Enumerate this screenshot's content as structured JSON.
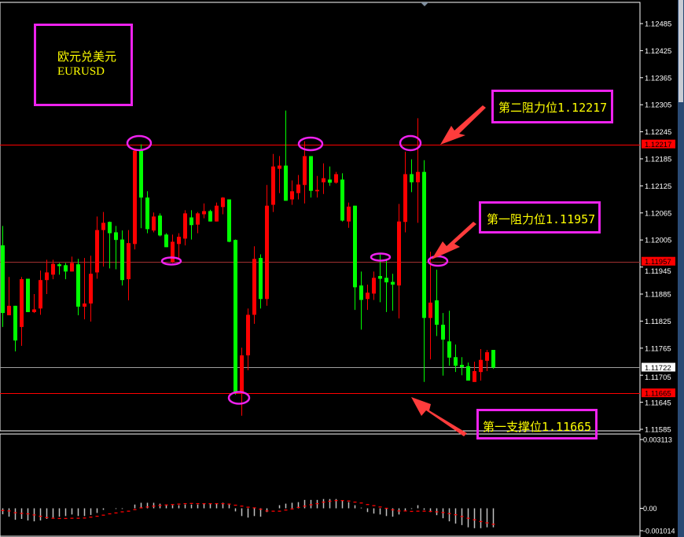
{
  "symbol_box": {
    "name_cn": "欧元兑美元",
    "symbol": "EURUSD"
  },
  "annotations": {
    "resistance2": "第二阻力位1.12217",
    "resistance1": "第一阻力位1.11957",
    "support1": "第一支撑位1.11665"
  },
  "colors": {
    "background": "#000000",
    "up_candle": "#ff0000",
    "down_candle": "#00ff00",
    "level_line": "#ff0000",
    "bid_line": "#a0a0a0",
    "annotation_border": "#ee22ee",
    "annotation_text": "#ffff00",
    "histogram": "#c0c0c0",
    "signal": "#ff0000"
  },
  "chart_data": [
    {
      "type": "candlestick",
      "title": "",
      "ylim": [
        1.11585,
        1.12485
      ],
      "y_ticks": [
        "1.12485",
        "1.12425",
        "1.12365",
        "1.12305",
        "1.12245",
        "1.12185",
        "1.12125",
        "1.12065",
        "1.12005",
        "1.11945",
        "1.11885",
        "1.11825",
        "1.11765",
        "1.11705",
        "1.11645",
        "1.11585"
      ],
      "levels": [
        {
          "value": 1.12217,
          "label": "1.12217",
          "kind": "resistance"
        },
        {
          "value": 1.11957,
          "label": "1.11957",
          "kind": "resistance"
        },
        {
          "value": 1.11665,
          "label": "1.11665",
          "kind": "support"
        }
      ],
      "bid": {
        "value": 1.11722,
        "label": "1.11722"
      },
      "candles_ohlc": [
        [
          1.11993,
          1.12036,
          1.11812,
          1.11843
        ],
        [
          1.11838,
          1.11923,
          1.11838,
          1.11859
        ],
        [
          1.11859,
          1.11859,
          1.11758,
          1.11782
        ],
        [
          1.11812,
          1.11923,
          1.1177,
          1.11918
        ],
        [
          1.11919,
          1.11919,
          1.11845,
          1.11845
        ],
        [
          1.11845,
          1.11885,
          1.11843,
          1.11851
        ],
        [
          1.11853,
          1.11937,
          1.11839,
          1.11916
        ],
        [
          1.11916,
          1.11961,
          1.11885,
          1.11933
        ],
        [
          1.11928,
          1.11961,
          1.11918,
          1.11952
        ],
        [
          1.11951,
          1.11954,
          1.11928,
          1.11947
        ],
        [
          1.11949,
          1.11954,
          1.11918,
          1.11935
        ],
        [
          1.11935,
          1.11968,
          1.11935,
          1.11954
        ],
        [
          1.11951,
          1.11963,
          1.11838,
          1.11857
        ],
        [
          1.11857,
          1.11965,
          1.11829,
          1.11864
        ],
        [
          1.11864,
          1.1197,
          1.11824,
          1.1193
        ],
        [
          1.11933,
          1.12057,
          1.11919,
          1.12027
        ],
        [
          1.12027,
          1.12067,
          1.11946,
          1.12043
        ],
        [
          1.12045,
          1.12046,
          1.11942,
          1.1202
        ],
        [
          1.12022,
          1.12036,
          1.1194,
          1.12005
        ],
        [
          1.12006,
          1.12026,
          1.11904,
          1.11916
        ],
        [
          1.11918,
          1.12027,
          1.11871,
          1.11998
        ],
        [
          1.11996,
          1.12207,
          1.11984,
          1.12203
        ],
        [
          1.12203,
          1.12217,
          1.12031,
          1.12099
        ],
        [
          1.12099,
          1.12113,
          1.1202,
          1.12029
        ],
        [
          1.12026,
          1.12066,
          1.12022,
          1.12057
        ],
        [
          1.12059,
          1.12064,
          1.12013,
          1.12015
        ],
        [
          1.12017,
          1.1202,
          1.11989,
          1.11989
        ],
        [
          1.11956,
          1.12017,
          1.11954,
          1.12001
        ],
        [
          1.11996,
          1.1202,
          1.11963,
          1.12012
        ],
        [
          1.12008,
          1.12071,
          1.11993,
          1.12064
        ],
        [
          1.12055,
          1.12071,
          1.12006,
          1.12038
        ],
        [
          1.12039,
          1.12067,
          1.1202,
          1.12064
        ],
        [
          1.12062,
          1.12086,
          1.12053,
          1.12069
        ],
        [
          1.12069,
          1.12072,
          1.12046,
          1.12046
        ],
        [
          1.12046,
          1.12088,
          1.12046,
          1.12081
        ],
        [
          1.12078,
          1.121,
          1.12062,
          1.12099
        ],
        [
          1.12095,
          1.12095,
          1.12,
          1.12001
        ],
        [
          1.12005,
          1.12006,
          1.11662,
          1.11667
        ],
        [
          1.11667,
          1.11766,
          1.11615,
          1.11749
        ],
        [
          1.11749,
          1.11853,
          1.11716,
          1.11839
        ],
        [
          1.11839,
          1.11991,
          1.11819,
          1.11963
        ],
        [
          1.11965,
          1.11973,
          1.11853,
          1.11874
        ],
        [
          1.11874,
          1.12127,
          1.11859,
          1.12081
        ],
        [
          1.12083,
          1.12196,
          1.12067,
          1.12168
        ],
        [
          1.12163,
          1.12191,
          1.12109,
          1.1217
        ],
        [
          1.1217,
          1.12292,
          1.12092,
          1.12092
        ],
        [
          1.12095,
          1.12137,
          1.12083,
          1.12113
        ],
        [
          1.12109,
          1.12149,
          1.12095,
          1.12128
        ],
        [
          1.12127,
          1.12224,
          1.12086,
          1.12191
        ],
        [
          1.12191,
          1.12191,
          1.12099,
          1.12114
        ],
        [
          1.12113,
          1.12147,
          1.12099,
          1.12116
        ],
        [
          1.12133,
          1.12175,
          1.12107,
          1.12142
        ],
        [
          1.12139,
          1.12168,
          1.12125,
          1.12132
        ],
        [
          1.12132,
          1.12156,
          1.1213,
          1.12151
        ],
        [
          1.12139,
          1.12153,
          1.12046,
          1.12048
        ],
        [
          1.12046,
          1.12088,
          1.12032,
          1.12079
        ],
        [
          1.12081,
          1.12081,
          1.1185,
          1.119
        ],
        [
          1.11904,
          1.11935,
          1.11806,
          1.11872
        ],
        [
          1.11874,
          1.11906,
          1.1185,
          1.11888
        ],
        [
          1.11886,
          1.11935,
          1.11872,
          1.11921
        ],
        [
          1.11925,
          1.11973,
          1.11867,
          1.11919
        ],
        [
          1.11921,
          1.11963,
          1.11845,
          1.11911
        ],
        [
          1.11912,
          1.1193,
          1.11848,
          1.11906
        ],
        [
          1.11904,
          1.12085,
          1.11831,
          1.12046
        ],
        [
          1.12045,
          1.12201,
          1.12022,
          1.12151
        ],
        [
          1.12151,
          1.12184,
          1.12111,
          1.12133
        ],
        [
          1.12133,
          1.12275,
          1.12043,
          1.12156
        ],
        [
          1.12156,
          1.12182,
          1.1169,
          1.11832
        ],
        [
          1.11832,
          1.11979,
          1.1174,
          1.11866
        ],
        [
          1.11871,
          1.11939,
          1.11792,
          1.11817
        ],
        [
          1.11817,
          1.11843,
          1.11704,
          1.11784
        ],
        [
          1.1178,
          1.11848,
          1.11726,
          1.11744
        ],
        [
          1.11745,
          1.11773,
          1.11712,
          1.11726
        ],
        [
          1.11728,
          1.11745,
          1.11705,
          1.11723
        ],
        [
          1.11725,
          1.11733,
          1.11693,
          1.11693
        ],
        [
          1.1169,
          1.11735,
          1.1169,
          1.11714
        ],
        [
          1.11712,
          1.11763,
          1.11693,
          1.11739
        ],
        [
          1.11737,
          1.11761,
          1.11714,
          1.11756
        ],
        [
          1.11761,
          1.11761,
          1.11719,
          1.11722
        ]
      ]
    },
    {
      "type": "bar",
      "title": "",
      "ylim": [
        -0.001014,
        0.003113
      ],
      "y_ticks": [
        "0.003113",
        "0.00",
        "-0.001014"
      ],
      "histogram": [
        -0.00027,
        -0.00038,
        -0.00052,
        -0.00048,
        -0.00055,
        -0.00059,
        -0.00055,
        -0.00048,
        -0.00042,
        -0.00038,
        -0.00035,
        -0.00028,
        -0.00035,
        -0.00035,
        -0.0003,
        -0.00021,
        -7e-05,
        0.0,
        -3e-05,
        -3e-05,
        0.0,
        0.00017,
        0.00025,
        0.00025,
        0.00025,
        0.00021,
        0.00017,
        0.00014,
        0.00014,
        0.00017,
        0.00017,
        0.00017,
        0.00021,
        0.00021,
        0.00021,
        0.00025,
        0.00017,
        -0.00014,
        -0.00035,
        -0.00042,
        -0.00035,
        -0.00038,
        -0.00017,
        0.0,
        0.00014,
        0.00021,
        0.00025,
        0.00028,
        0.00038,
        0.00038,
        0.00038,
        0.00042,
        0.00042,
        0.00042,
        0.00035,
        0.00028,
        0.00014,
        3e-05,
        -0.00017,
        -0.00024,
        -0.00028,
        -0.00035,
        -0.00038,
        -0.00028,
        -0.0001,
        -3e-05,
        0.00014,
        -7e-05,
        -0.00017,
        -0.00031,
        -0.00045,
        -0.00059,
        -0.00069,
        -0.00076,
        -0.00086,
        -0.0009,
        -0.0009,
        -0.00086,
        -0.00086
      ],
      "signal": [
        -0.0001,
        -0.00012,
        -0.0002,
        -0.00023,
        -0.00025,
        -0.0003,
        -0.00036,
        -0.00042,
        -0.00045,
        -0.00046,
        -0.00046,
        -0.00045,
        -0.00045,
        -0.00044,
        -0.0004,
        -0.00036,
        -0.00031,
        -0.00025,
        -0.00021,
        -0.00016,
        -0.00013,
        -6e-05,
        2e-05,
        6e-05,
        0.0001,
        0.00013,
        0.00015,
        0.00017,
        0.00019,
        0.00021,
        0.00022,
        0.00021,
        0.00021,
        0.00021,
        0.00021,
        0.00021,
        0.00019,
        0.00014,
        0.0001,
        5e-05,
        2e-05,
        -4e-05,
        -0.00012,
        -0.00013,
        -0.00013,
        -8e-05,
        -3e-05,
        4e-05,
        0.0001,
        0.00016,
        0.00021,
        0.00028,
        0.00032,
        0.00035,
        0.00035,
        0.00033,
        0.00028,
        0.00024,
        0.00017,
        0.00012,
        6e-05,
        0.0,
        -7e-05,
        -0.00012,
        -0.00012,
        -0.00014,
        -0.00013,
        -0.00013,
        -0.00014,
        -0.00016,
        -0.00019,
        -0.00024,
        -0.00029,
        -0.00037,
        -0.00045,
        -0.00052,
        -0.0006,
        -0.00066,
        -0.00072
      ]
    }
  ]
}
